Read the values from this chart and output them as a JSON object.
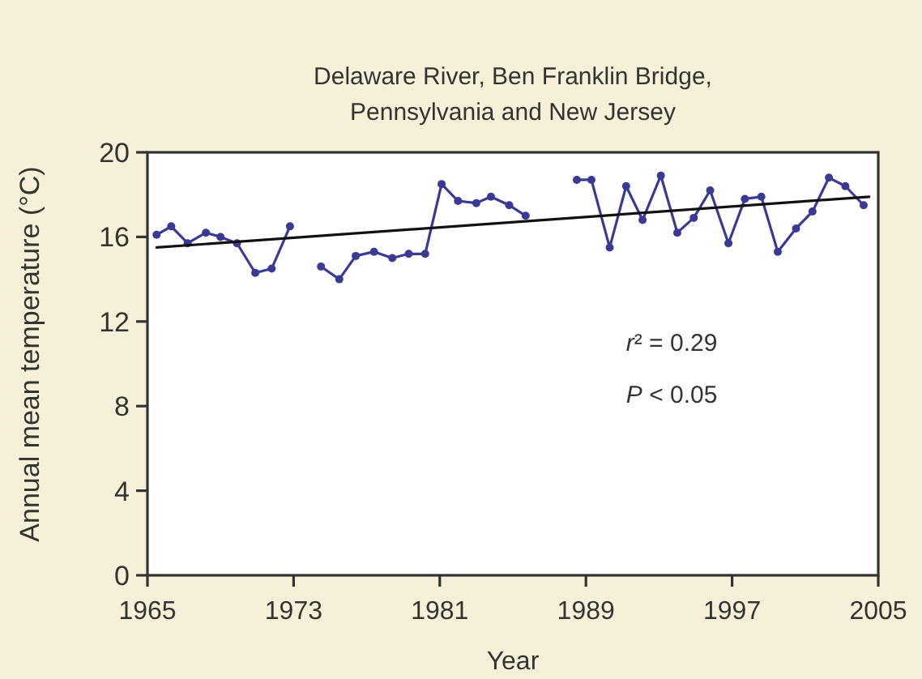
{
  "chart_data": {
    "type": "line",
    "title": "Delaware River, Ben Franklin Bridge,\nPennsylvania and New Jersey",
    "xlabel": "Year",
    "ylabel": "Annual mean temperature (°C)",
    "xlim": [
      1965,
      2005
    ],
    "xticks": [
      1965,
      1973,
      1981,
      1989,
      1997,
      2005
    ],
    "ylim": [
      0,
      20
    ],
    "yticks": [
      0,
      4,
      8,
      12,
      16,
      20
    ],
    "series": [
      {
        "color": "#3a3a94",
        "marker": "circle",
        "x": [
          1965.5,
          1966.3,
          1967.2,
          1968.2,
          1969.0,
          1969.9,
          1970.9,
          1971.8,
          1972.8,
          1973.6,
          1974.5,
          1975.5,
          1976.4,
          1977.4,
          1978.4,
          1979.3,
          1980.2,
          1981.1,
          1982.0,
          1983.0,
          1983.8,
          1984.8,
          1985.7,
          1986.6,
          1987.6,
          1988.5,
          1989.3,
          1990.3,
          1991.2,
          1992.1,
          1993.1,
          1994.0,
          1994.9,
          1995.8,
          1996.8,
          1997.7,
          1998.6,
          1999.5,
          2000.5,
          2001.4,
          2002.3,
          2003.2,
          2004.2
        ],
        "values": [
          16.1,
          16.5,
          15.7,
          16.2,
          16.0,
          15.7,
          14.3,
          14.5,
          16.5,
          null,
          14.6,
          14.0,
          15.1,
          15.3,
          15.0,
          15.2,
          15.2,
          18.5,
          17.7,
          17.6,
          17.9,
          17.5,
          17.0,
          null,
          null,
          18.7,
          18.7,
          15.5,
          18.4,
          16.8,
          18.9,
          16.2,
          16.9,
          18.2,
          15.7,
          17.8,
          17.9,
          15.3,
          16.4,
          17.2,
          18.8,
          18.4,
          17.5
        ]
      },
      {
        "color": "#111111",
        "x": [
          1965.5,
          2004.5
        ],
        "values": [
          15.5,
          17.9
        ]
      }
    ],
    "annotations": [
      "r² = 0.29",
      "P < 0.05"
    ]
  }
}
